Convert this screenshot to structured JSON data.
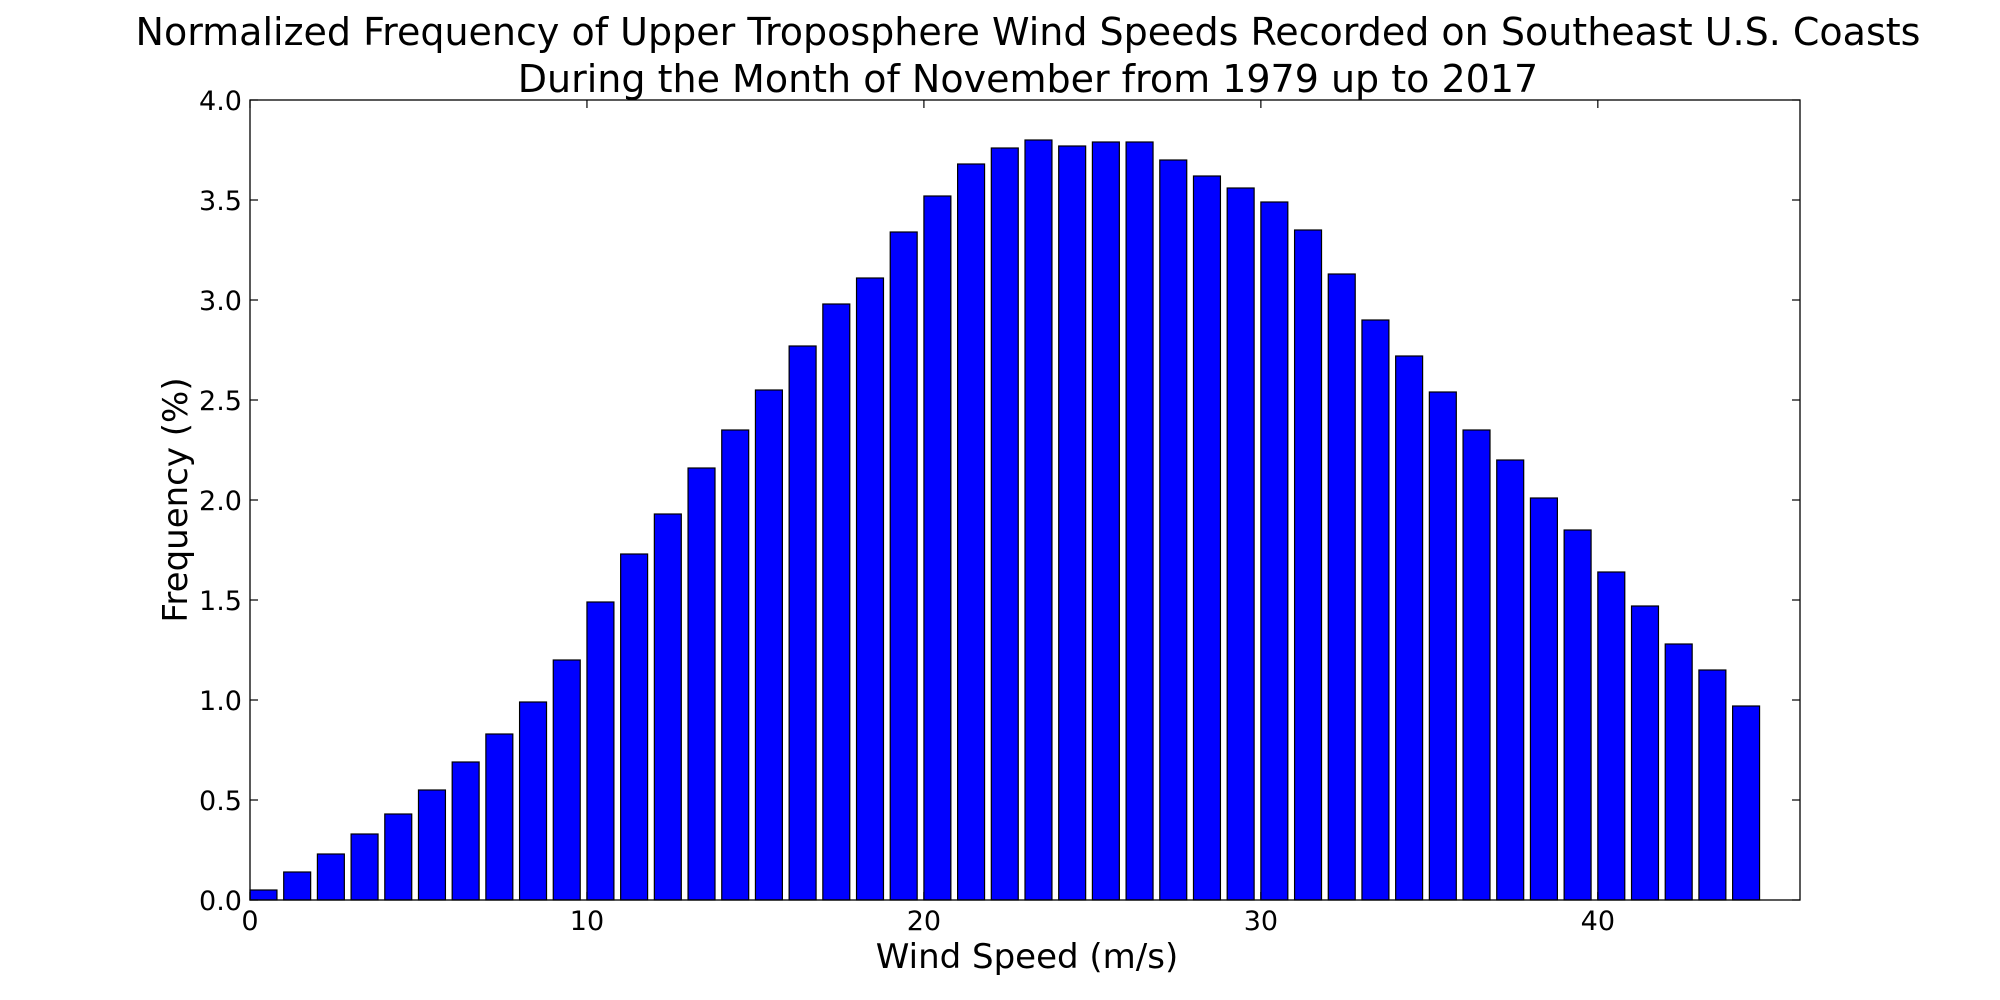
{
  "chart_data": {
    "type": "bar",
    "title_lines": [
      "Normalized Frequency of Upper Troposphere Wind Speeds Recorded on Southeast U.S. Coasts",
      "During the Month of November from 1979 up to 2017"
    ],
    "xlabel": "Wind Speed (m/s)",
    "ylabel": "Frequency (%)",
    "xlim": [
      0,
      46
    ],
    "ylim": [
      0,
      4.0
    ],
    "xticks": [
      0,
      10,
      20,
      30,
      40
    ],
    "yticks": [
      0.0,
      0.5,
      1.0,
      1.5,
      2.0,
      2.5,
      3.0,
      3.5,
      4.0
    ],
    "bar_color": "#0000ff",
    "bar_edge_color": "#000000",
    "grid": false,
    "x": [
      0,
      1,
      2,
      3,
      4,
      5,
      6,
      7,
      8,
      9,
      10,
      11,
      12,
      13,
      14,
      15,
      16,
      17,
      18,
      19,
      20,
      21,
      22,
      23,
      24,
      25,
      26,
      27,
      28,
      29,
      30,
      31,
      32,
      33,
      34,
      35,
      36,
      37,
      38,
      39,
      40,
      41,
      42,
      43,
      44
    ],
    "values": [
      0.05,
      0.14,
      0.23,
      0.33,
      0.43,
      0.55,
      0.69,
      0.83,
      0.99,
      1.2,
      1.49,
      1.73,
      1.93,
      2.16,
      2.35,
      2.55,
      2.77,
      2.98,
      3.11,
      3.34,
      3.52,
      3.68,
      3.76,
      3.8,
      3.77,
      3.79,
      3.79,
      3.7,
      3.62,
      3.56,
      3.49,
      3.35,
      3.13,
      2.9,
      2.72,
      2.54,
      2.35,
      2.2,
      2.01,
      1.85,
      1.64,
      1.47,
      1.28,
      1.15,
      0.97
    ]
  }
}
